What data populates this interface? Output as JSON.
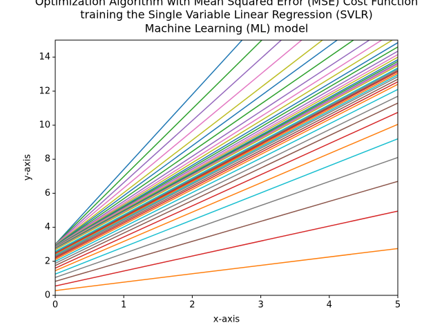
{
  "chart_data": {
    "type": "line",
    "title": [
      "Optimization Algorithm with Mean Squared Error (MSE) Cost Function",
      "training the Single Variable Linear Regression (SVLR)",
      "Machine Learning (ML) model"
    ],
    "x_label": "x-axis",
    "y_label": "y-axis",
    "x": [
      0,
      5
    ],
    "xlim": [
      0,
      5
    ],
    "ylim": [
      0,
      15
    ],
    "xticks": [
      0,
      1,
      2,
      3,
      4,
      5
    ],
    "yticks": [
      0,
      2,
      4,
      6,
      8,
      10,
      12,
      14
    ],
    "series": [
      {
        "color": "#1f77b4",
        "values": [
          3.0,
          25.0
        ]
      },
      {
        "color": "#ff7f0e",
        "values": [
          0.28,
          2.75
        ]
      },
      {
        "color": "#2ca02c",
        "values": [
          3.0,
          22.9
        ]
      },
      {
        "color": "#d62728",
        "values": [
          0.55,
          4.95
        ]
      },
      {
        "color": "#9467bd",
        "values": [
          2.98,
          21.2
        ]
      },
      {
        "color": "#8c564b",
        "values": [
          0.82,
          6.7
        ]
      },
      {
        "color": "#e377c2",
        "values": [
          2.96,
          19.7
        ]
      },
      {
        "color": "#7f7f7f",
        "values": [
          1.05,
          8.1
        ]
      },
      {
        "color": "#bcbd22",
        "values": [
          2.94,
          18.4
        ]
      },
      {
        "color": "#17becf",
        "values": [
          1.25,
          9.2
        ]
      },
      {
        "color": "#1f77b4",
        "values": [
          2.92,
          17.6
        ]
      },
      {
        "color": "#ff7f0e",
        "values": [
          1.45,
          10.05
        ]
      },
      {
        "color": "#2ca02c",
        "values": [
          2.9,
          16.8
        ]
      },
      {
        "color": "#d62728",
        "values": [
          1.6,
          10.75
        ]
      },
      {
        "color": "#9467bd",
        "values": [
          2.88,
          16.1
        ]
      },
      {
        "color": "#8c564b",
        "values": [
          1.75,
          11.3
        ]
      },
      {
        "color": "#e377c2",
        "values": [
          2.86,
          15.6
        ]
      },
      {
        "color": "#7f7f7f",
        "values": [
          1.88,
          11.7
        ]
      },
      {
        "color": "#bcbd22",
        "values": [
          2.85,
          15.2
        ]
      },
      {
        "color": "#17becf",
        "values": [
          2.0,
          12.1
        ]
      },
      {
        "color": "#1f77b4",
        "values": [
          2.84,
          14.85
        ]
      },
      {
        "color": "#ff7f0e",
        "values": [
          2.1,
          12.4
        ]
      },
      {
        "color": "#2ca02c",
        "values": [
          2.83,
          14.6
        ]
      },
      {
        "color": "#d62728",
        "values": [
          2.18,
          12.55
        ]
      },
      {
        "color": "#9467bd",
        "values": [
          2.82,
          14.35
        ]
      },
      {
        "color": "#8c564b",
        "values": [
          2.25,
          12.7
        ]
      },
      {
        "color": "#e377c2",
        "values": [
          2.8,
          14.15
        ]
      },
      {
        "color": "#7f7f7f",
        "values": [
          2.32,
          12.85
        ]
      },
      {
        "color": "#bcbd22",
        "values": [
          2.78,
          14.0
        ]
      },
      {
        "color": "#17becf",
        "values": [
          2.38,
          12.95
        ]
      },
      {
        "color": "#1f77b4",
        "values": [
          2.76,
          13.85
        ]
      },
      {
        "color": "#ff7f0e",
        "values": [
          2.43,
          13.05
        ]
      },
      {
        "color": "#2ca02c",
        "values": [
          2.74,
          13.75
        ]
      },
      {
        "color": "#d62728",
        "values": [
          2.47,
          13.15
        ]
      },
      {
        "color": "#9467bd",
        "values": [
          2.72,
          13.65
        ]
      },
      {
        "color": "#8c564b",
        "values": [
          2.51,
          13.22
        ]
      },
      {
        "color": "#e377c2",
        "values": [
          2.7,
          13.58
        ]
      },
      {
        "color": "#7f7f7f",
        "values": [
          2.55,
          13.3
        ]
      },
      {
        "color": "#bcbd22",
        "values": [
          2.68,
          13.5
        ]
      },
      {
        "color": "#17becf",
        "values": [
          2.58,
          13.36
        ]
      }
    ]
  }
}
